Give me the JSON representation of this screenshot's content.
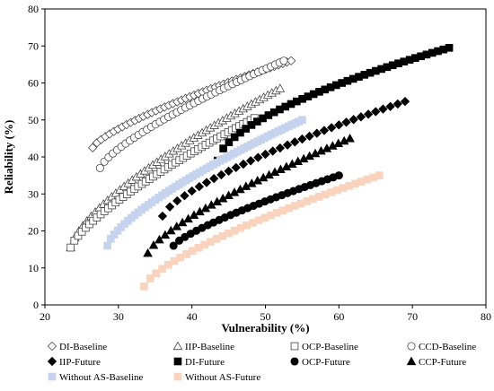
{
  "chart_data": {
    "type": "scatter",
    "title": "",
    "xlabel": "Vulnerability (%)",
    "ylabel": "Reliability (%)",
    "xlim": [
      20,
      80
    ],
    "ylim": [
      0,
      80
    ],
    "xticks": [
      20,
      30,
      40,
      50,
      60,
      70,
      80
    ],
    "yticks": [
      0,
      10,
      20,
      30,
      40,
      50,
      60,
      70,
      80
    ],
    "grid": false,
    "legend_position": "bottom",
    "series": [
      {
        "name": "DI-Baseline",
        "marker": "diamond-open",
        "color": "#444444",
        "x_range": [
          26.5,
          53.5
        ],
        "y_range": [
          42.5,
          66
        ],
        "curve": 0.75,
        "count": 48
      },
      {
        "name": "IIP-Baseline",
        "marker": "triangle-open",
        "color": "#444444",
        "x_range": [
          23.5,
          52
        ],
        "y_range": [
          15.5,
          58.5
        ],
        "curve": 0.7,
        "count": 52
      },
      {
        "name": "OCP-Baseline",
        "marker": "square-open",
        "color": "#444444",
        "x_range": [
          23.5,
          48.5
        ],
        "y_range": [
          15.5,
          50.5
        ],
        "curve": 0.75,
        "count": 50
      },
      {
        "name": "CCD-Baseline",
        "marker": "circle-open",
        "color": "#444444",
        "x_range": [
          27.5,
          52.5
        ],
        "y_range": [
          37,
          66
        ],
        "curve": 0.75,
        "count": 44
      },
      {
        "name": "IIP-Future",
        "marker": "diamond-filled",
        "color": "#000000",
        "x_range": [
          36,
          69
        ],
        "y_range": [
          24,
          55
        ],
        "curve": 0.72,
        "count": 34
      },
      {
        "name": "DI-Future",
        "marker": "square-filled",
        "color": "#000000",
        "x_range": [
          43.5,
          75
        ],
        "y_range": [
          39,
          69.5
        ],
        "curve": 0.6,
        "count": 42
      },
      {
        "name": "OCP-Future",
        "marker": "circle-filled",
        "color": "#000000",
        "x_range": [
          37.5,
          60
        ],
        "y_range": [
          16,
          35
        ],
        "curve": 0.78,
        "count": 30
      },
      {
        "name": "CCP-Future",
        "marker": "triangle-filled",
        "color": "#000000",
        "x_range": [
          34,
          61.5
        ],
        "y_range": [
          14,
          45
        ],
        "curve": 0.75,
        "count": 36
      },
      {
        "name": "Without AS-Baseline",
        "marker": "square-filled",
        "color": "#c5d3ee",
        "x_range": [
          28.5,
          55
        ],
        "y_range": [
          16,
          50
        ],
        "curve": 0.72,
        "count": 58
      },
      {
        "name": "Without AS-Future",
        "marker": "square-filled",
        "color": "#f9d3bd",
        "x_range": [
          33.5,
          65.5
        ],
        "y_range": [
          5,
          35
        ],
        "curve": 0.72,
        "count": 40
      }
    ]
  }
}
